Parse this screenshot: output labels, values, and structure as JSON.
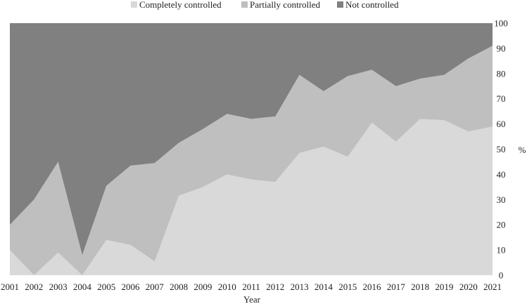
{
  "chart_data": {
    "type": "area",
    "stacked": true,
    "title": "",
    "xlabel": "Year",
    "ylabel": "%",
    "ylim": [
      0,
      100
    ],
    "yticks": [
      0,
      10,
      20,
      30,
      40,
      50,
      60,
      70,
      80,
      90,
      100
    ],
    "categories": [
      "2001",
      "2002",
      "2003",
      "2004",
      "2005",
      "2006",
      "2007",
      "2008",
      "2009",
      "2010",
      "2011",
      "2012",
      "2013",
      "2014",
      "2015",
      "2016",
      "2017",
      "2018",
      "2019",
      "2020",
      "2021"
    ],
    "legend_position": "top",
    "series": [
      {
        "name": "Completely controlled",
        "color": "#d9d9d9",
        "values": [
          10,
          0,
          9,
          0,
          14,
          12,
          5.5,
          31.5,
          35,
          40,
          38,
          37,
          48.5,
          51,
          47,
          60.5,
          53,
          62,
          61.5,
          57,
          59
        ]
      },
      {
        "name": "Partially controlled",
        "color": "#bfbfbf",
        "values": [
          10,
          30,
          36,
          8,
          21.5,
          31.5,
          39,
          21,
          23,
          24,
          24,
          26,
          31,
          22,
          32,
          21,
          22,
          16,
          18,
          29,
          32
        ]
      },
      {
        "name": "Not controlled",
        "color": "#808080",
        "values": [
          80,
          70,
          55,
          92,
          64.5,
          56.5,
          55.5,
          47.5,
          42,
          36,
          38,
          37,
          20.5,
          27,
          21,
          18.5,
          25,
          22,
          20.5,
          14,
          9
        ]
      }
    ]
  }
}
